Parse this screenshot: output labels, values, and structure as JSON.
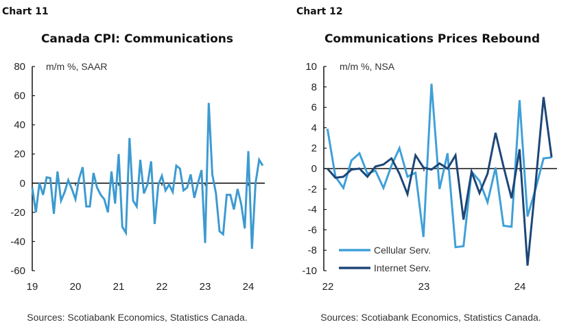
{
  "chart_data": [
    {
      "type": "line",
      "label": "Chart 11",
      "title": "Canada CPI: Communications",
      "ylabel": "m/m %, SAAR",
      "xlabel": "",
      "ylim": [
        -60,
        80
      ],
      "yticks": [
        80,
        60,
        40,
        20,
        0,
        -20,
        -40,
        -60
      ],
      "xtick_labels": [
        "19",
        "20",
        "21",
        "22",
        "23",
        "24"
      ],
      "x_start": "2019-01",
      "x_end": "2024-05",
      "frequency": "monthly",
      "grid": false,
      "source": "Sources: Scotiabank Economics, Statistics Canada.",
      "series": [
        {
          "color": "#3d9ad1",
          "values": [
            -3,
            -20,
            0,
            -8,
            4,
            3.5,
            -21,
            8,
            -12,
            -6,
            2,
            -4,
            -11,
            3,
            11,
            -16,
            -16,
            7,
            -3,
            -8,
            -11,
            -20,
            8,
            -14,
            20,
            -30,
            -34,
            31,
            -12,
            -16,
            16,
            -7,
            -1,
            15,
            -28,
            -1,
            5,
            -5,
            -1,
            -6,
            12,
            10,
            -5,
            -3,
            6,
            -10,
            0,
            9,
            -41,
            55,
            6,
            -7,
            -33,
            -35,
            -8,
            -8,
            -18,
            -4,
            -14,
            -31,
            22,
            -45,
            0,
            16,
            12
          ]
        }
      ]
    },
    {
      "type": "line",
      "label": "Chart 12",
      "title": "Communications Prices Rebound",
      "ylabel": "m/m %, NSA",
      "xlabel": "",
      "ylim": [
        -10,
        10
      ],
      "yticks": [
        10,
        8,
        6,
        4,
        2,
        0,
        -2,
        -4,
        -6,
        -8,
        -10
      ],
      "xtick_labels": [
        "22",
        "23",
        "24"
      ],
      "x_start": "2022-01",
      "x_end": "2024-05",
      "frequency": "monthly",
      "grid": false,
      "legend": "bottom-left",
      "source": "Sources: Scotiabank Economics, Statistics Canada.",
      "series": [
        {
          "name": "Cellular Serv.",
          "color": "#3fa0d8",
          "values": [
            3.9,
            -0.8,
            -1.9,
            0.8,
            1.5,
            -0.5,
            -0.2,
            -1.9,
            0.3,
            2.0,
            -0.8,
            -0.4,
            -6.7,
            8.3,
            -2.0,
            1.5,
            -7.7,
            -7.6,
            -0.3,
            -1.2,
            -3.3,
            0.1,
            -5.6,
            -5.7,
            6.7,
            -4.7,
            -2.0,
            1.0,
            1.1
          ]
        },
        {
          "name": "Internet Serv.",
          "color": "#1d4677",
          "values": [
            0.0,
            -0.9,
            -0.8,
            -0.1,
            0.0,
            -0.8,
            0.2,
            0.4,
            1.0,
            -0.5,
            -2.5,
            1.3,
            0.1,
            -0.1,
            0.5,
            0.0,
            1.3,
            -5.0,
            -0.3,
            -2.4,
            -0.5,
            3.5,
            0.2,
            -2.9,
            1.9,
            -9.5,
            -1.5,
            7.0,
            1.1
          ]
        }
      ]
    }
  ]
}
